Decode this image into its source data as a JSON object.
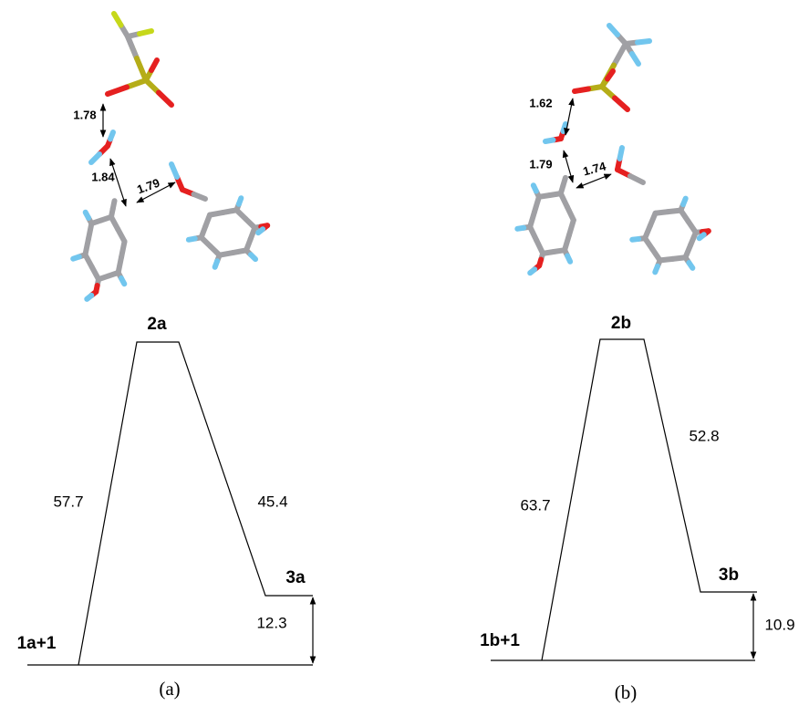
{
  "panels": [
    {
      "label": "(a)",
      "distances": [
        "1.78",
        "1.84",
        "1.79"
      ],
      "states": {
        "reactant": "1a+1",
        "ts": "2a",
        "product": "3a"
      },
      "barrier_forward": "57.7",
      "barrier_reverse": "45.4",
      "reaction_energy": "12.3"
    },
    {
      "label": "(b)",
      "distances": [
        "1.62",
        "1.79",
        "1.74"
      ],
      "states": {
        "reactant": "1b+1",
        "ts": "2b",
        "product": "3b"
      },
      "barrier_forward": "63.7",
      "barrier_reverse": "52.8",
      "reaction_energy": "10.9"
    }
  ]
}
